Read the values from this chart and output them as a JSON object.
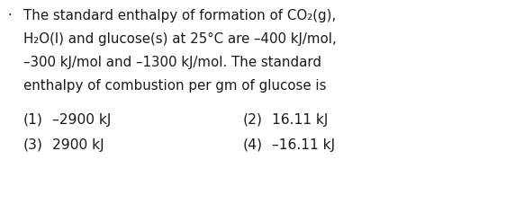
{
  "background_color": "#ffffff",
  "text_color": "#1a1a1a",
  "bullet": "·",
  "paragraph_lines": [
    "The standard enthalpy of formation of CO₂(g),",
    "H₂O(l) and glucose(s) at 25°C are –400 kJ/mol,",
    "–300 kJ/mol and –1300 kJ/mol. The standard",
    "enthalpy of combustion per gm of glucose is"
  ],
  "options": [
    {
      "label": "(1)",
      "value": "–2900 kJ",
      "row": 0,
      "col": 0
    },
    {
      "label": "(2)",
      "value": "16.11 kJ",
      "row": 0,
      "col": 1
    },
    {
      "label": "(3)",
      "value": "2900 kJ",
      "row": 1,
      "col": 0
    },
    {
      "label": "(4)",
      "value": "–16.11 kJ",
      "row": 1,
      "col": 1
    }
  ],
  "font_size_para": 10.8,
  "font_size_options": 11.2,
  "figwidth": 5.62,
  "figheight": 2.37,
  "dpi": 100
}
